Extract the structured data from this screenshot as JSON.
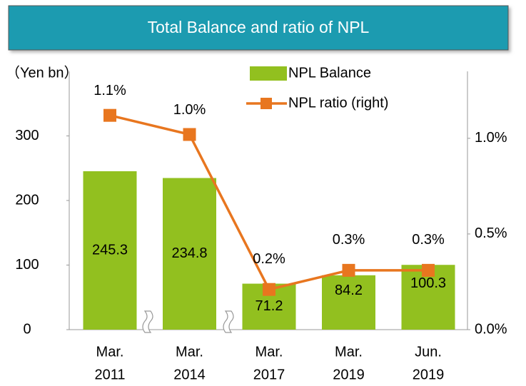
{
  "chart_data": {
    "type": "bar_line",
    "title": "Total Balance and ratio of NPL",
    "y_label": "（Yen bn）",
    "categories": [
      [
        "Mar.",
        "2011"
      ],
      [
        "Mar.",
        "2014"
      ],
      [
        "Mar.",
        "2017"
      ],
      [
        "Mar.",
        "2019"
      ],
      [
        "Jun.",
        "2019"
      ]
    ],
    "series": [
      {
        "name": "NPL Balance",
        "color": "#92c01f",
        "type": "bar",
        "values": [
          245.3,
          234.8,
          71.2,
          84.2,
          100.3
        ]
      },
      {
        "name": "NPL ratio (right)",
        "color": "#e8761f",
        "type": "line",
        "axis": "y2",
        "values": [
          1.12,
          1.02,
          0.21,
          0.31,
          0.31
        ],
        "value_labels": [
          "1.1%",
          "1.0%",
          "0.2%",
          "0.3%",
          "0.3%"
        ]
      }
    ],
    "ylim": [
      0,
      400
    ],
    "yticks": [
      0,
      100,
      200,
      300
    ],
    "y2lim": [
      0,
      1.35
    ],
    "y2ticks": [
      {
        "value": 0,
        "label": "0.0%"
      },
      {
        "value": 0.5,
        "label": "0.5%"
      },
      {
        "value": 1.0,
        "label": "1.0%"
      }
    ]
  }
}
